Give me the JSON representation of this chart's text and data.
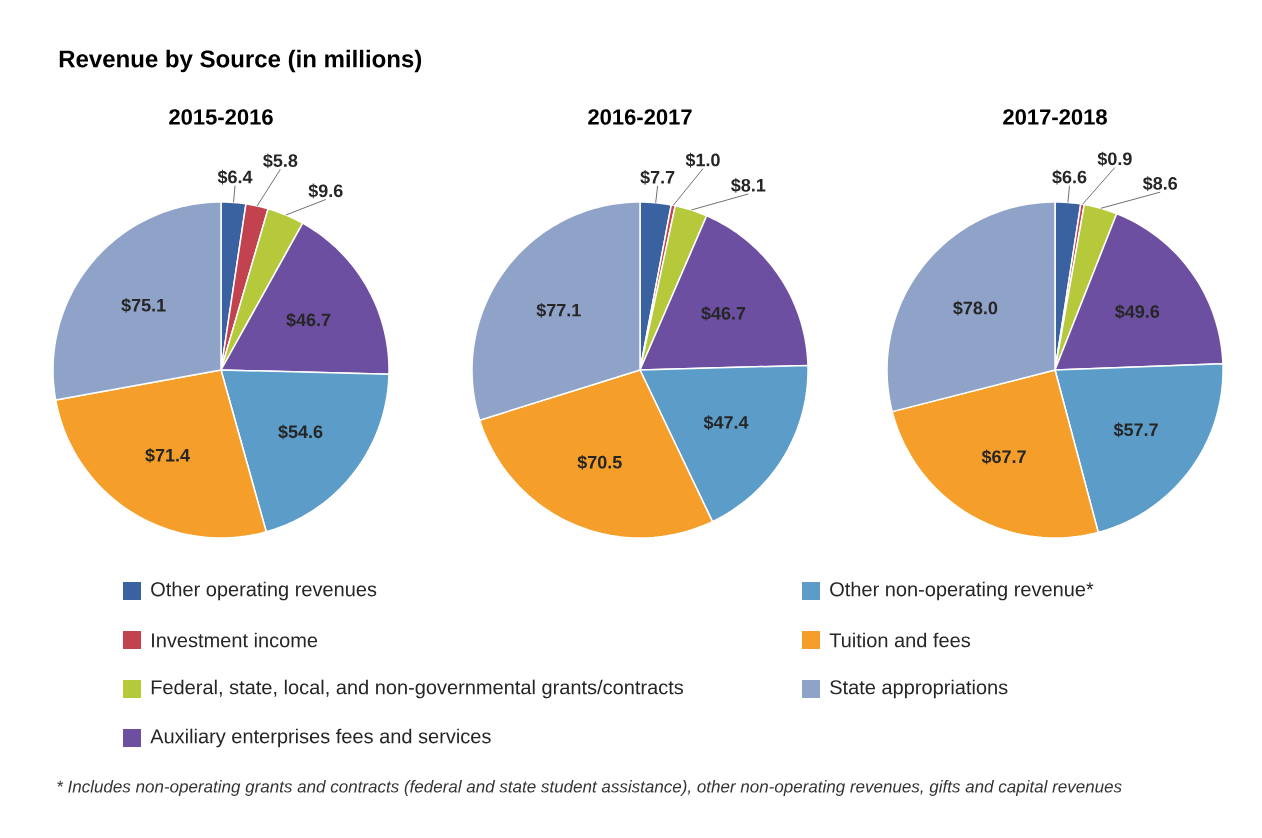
{
  "chart_data": [
    {
      "type": "pie",
      "title": "Revenue by Source (in millions)",
      "subtitle": "2015-2016",
      "categories": [
        "Other operating revenues",
        "Investment income",
        "Federal, state, local, and non-governmental grants/contracts",
        "Auxiliary enterprises fees and services",
        "Other non-operating revenue*",
        "Tuition and fees",
        "State appropriations"
      ],
      "values": [
        6.4,
        5.8,
        9.6,
        46.7,
        54.6,
        71.4,
        75.1
      ],
      "value_labels": [
        "$6.4",
        "$5.8",
        "$9.6",
        "$46.7",
        "$54.6",
        "$71.4",
        "$75.1"
      ],
      "colors": [
        "#3a62a0",
        "#c2434f",
        "#b6c93a",
        "#6d4fa2",
        "#5b9cc8",
        "#f59f2a",
        "#8fa2c8"
      ],
      "legend": "bottom",
      "annotations": [
        "* Includes non-operating grants and contracts (federal and state student assistance), other non-operating revenues, gifts and capital revenues"
      ]
    },
    {
      "type": "pie",
      "subtitle": "2016-2017",
      "values": [
        7.7,
        1.0,
        8.1,
        46.7,
        47.4,
        70.5,
        77.1
      ],
      "value_labels": [
        "$7.7",
        "$1.0",
        "$8.1",
        "$46.7",
        "$47.4",
        "$70.5",
        "$77.1"
      ],
      "colors": [
        "#3a62a0",
        "#c2434f",
        "#b6c93a",
        "#6d4fa2",
        "#5b9cc8",
        "#f59f2a",
        "#8fa2c8"
      ]
    },
    {
      "type": "pie",
      "subtitle": "2017-2018",
      "values": [
        6.6,
        0.9,
        8.6,
        49.6,
        57.7,
        67.7,
        78.0
      ],
      "value_labels": [
        "$6.6",
        "$0.9",
        "$8.6",
        "$49.6",
        "$57.7",
        "$67.7",
        "$78.0"
      ],
      "colors": [
        "#3a62a0",
        "#c2434f",
        "#b6c93a",
        "#6d4fa2",
        "#5b9cc8",
        "#f59f2a",
        "#8fa2c8"
      ]
    }
  ]
}
